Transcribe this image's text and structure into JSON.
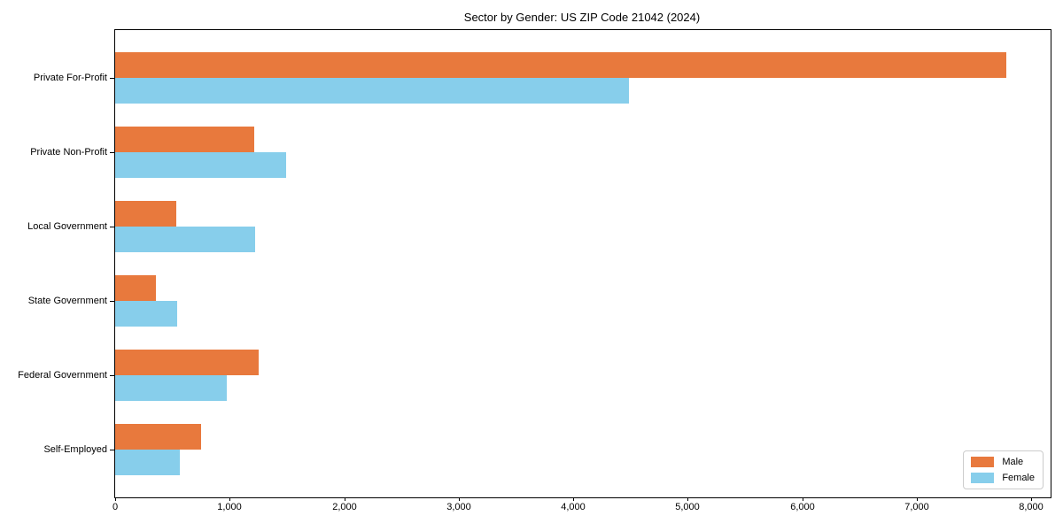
{
  "title": "Sector by Gender: US ZIP Code 21042 (2024)",
  "colors": {
    "male": "#e8793d",
    "female": "#87ceeb",
    "axis": "#000000",
    "legend_border": "#cccccc",
    "background": "#ffffff"
  },
  "legend": {
    "position": "lower-right",
    "items": [
      {
        "label": "Male",
        "color": "#e8793d"
      },
      {
        "label": "Female",
        "color": "#87ceeb"
      }
    ]
  },
  "chart_data": {
    "type": "bar",
    "orientation": "horizontal",
    "title": "Sector by Gender: US ZIP Code 21042 (2024)",
    "categories": [
      "Private For-Profit",
      "Private Non-Profit",
      "Local Government",
      "State Government",
      "Federal Government",
      "Self-Employed"
    ],
    "series": [
      {
        "name": "Male",
        "color": "#e8793d",
        "values": [
          7780,
          1215,
          535,
          355,
          1255,
          750
        ]
      },
      {
        "name": "Female",
        "color": "#87ceeb",
        "values": [
          4490,
          1490,
          1220,
          540,
          975,
          565
        ]
      }
    ],
    "xlabel": "",
    "ylabel": "",
    "xlim": [
      0,
      8170
    ],
    "xticks": [
      0,
      1000,
      2000,
      3000,
      4000,
      5000,
      6000,
      7000,
      8000
    ],
    "xtick_labels": [
      "0",
      "1,000",
      "2,000",
      "3,000",
      "4,000",
      "5,000",
      "6,000",
      "7,000",
      "8,000"
    ],
    "grid": false,
    "legend_position": "lower right"
  }
}
